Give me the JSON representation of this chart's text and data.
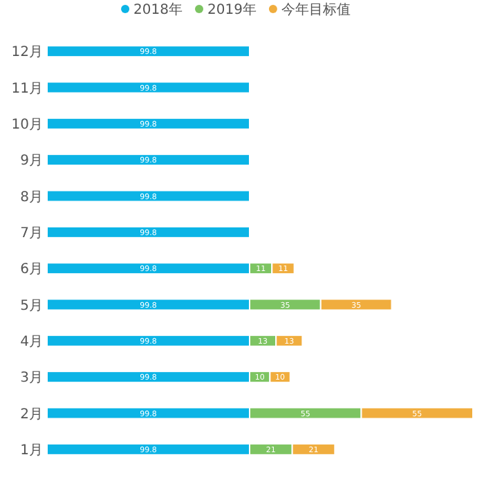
{
  "chart_data": {
    "type": "bar",
    "orientation": "horizontal",
    "stacked": true,
    "data_labels": true,
    "legend": "top",
    "grid": false,
    "categories": [
      "12月",
      "11月",
      "10月",
      "9月",
      "8月",
      "7月",
      "6月",
      "5月",
      "4月",
      "3月",
      "2月",
      "1月"
    ],
    "series": [
      {
        "name": "2018年",
        "color": "#0bb4e6",
        "values": [
          99.8,
          99.8,
          99.8,
          99.8,
          99.8,
          99.8,
          99.8,
          99.8,
          99.8,
          99.8,
          99.8,
          99.8
        ]
      },
      {
        "name": "2019年",
        "color": "#7dc462",
        "values": [
          null,
          null,
          null,
          null,
          null,
          null,
          11,
          35,
          13,
          10,
          55,
          21
        ]
      },
      {
        "name": "今年目标值",
        "color": "#f0ad3e",
        "values": [
          null,
          null,
          null,
          null,
          null,
          null,
          11,
          35,
          13,
          10,
          55,
          21
        ]
      }
    ]
  }
}
